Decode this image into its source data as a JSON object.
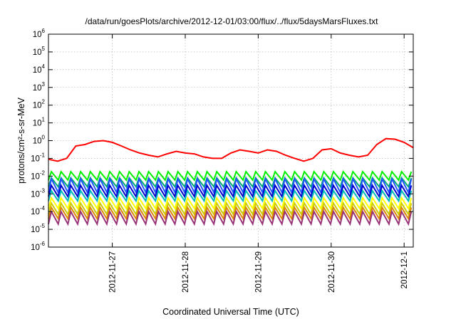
{
  "chart_data": {
    "type": "line",
    "title": "/data/run/goesPlots/archive/2012-12-01/03:00/flux/../flux/5daysMarsFluxes.txt",
    "xlabel": "Coordinated Universal Time (UTC)",
    "ylabel": "protons/cm²-s-sr-MeV",
    "yscale": "log",
    "ylim": [
      1e-06,
      1000000.0
    ],
    "xlim": [
      "2012-11-26T03:00",
      "2012-12-01T03:00"
    ],
    "grid": true,
    "y_ticks": [
      {
        "base": "10",
        "exp": "-6"
      },
      {
        "base": "10",
        "exp": "-5"
      },
      {
        "base": "10",
        "exp": "-4"
      },
      {
        "base": "10",
        "exp": "-3"
      },
      {
        "base": "10",
        "exp": "-2"
      },
      {
        "base": "10",
        "exp": "-1"
      },
      {
        "base": "10",
        "exp": "0"
      },
      {
        "base": "10",
        "exp": "1"
      },
      {
        "base": "10",
        "exp": "2"
      },
      {
        "base": "10",
        "exp": "3"
      },
      {
        "base": "10",
        "exp": "4"
      },
      {
        "base": "10",
        "exp": "5"
      },
      {
        "base": "10",
        "exp": "6"
      }
    ],
    "x_ticks": [
      "2012-11-27",
      "2012-11-28",
      "2012-11-29",
      "2012-11-30",
      "2012-12-1"
    ],
    "series": [
      {
        "color": "#ff0000",
        "x": [
          "2012-11-26T03:00",
          "2012-11-26T06:00",
          "2012-11-26T09:00",
          "2012-11-26T12:00",
          "2012-11-26T15:00",
          "2012-11-26T18:00",
          "2012-11-26T21:00",
          "2012-11-27T00:00",
          "2012-11-27T03:00",
          "2012-11-27T06:00",
          "2012-11-27T09:00",
          "2012-11-27T12:00",
          "2012-11-27T15:00",
          "2012-11-27T18:00",
          "2012-11-27T21:00",
          "2012-11-28T00:00",
          "2012-11-28T03:00",
          "2012-11-28T06:00",
          "2012-11-28T09:00",
          "2012-11-28T12:00",
          "2012-11-28T15:00",
          "2012-11-28T18:00",
          "2012-11-28T21:00",
          "2012-11-29T00:00",
          "2012-11-29T03:00",
          "2012-11-29T06:00",
          "2012-11-29T09:00",
          "2012-11-29T12:00",
          "2012-11-29T15:00",
          "2012-11-29T18:00",
          "2012-11-29T21:00",
          "2012-11-30T00:00",
          "2012-11-30T03:00",
          "2012-11-30T06:00",
          "2012-11-30T09:00",
          "2012-11-30T12:00",
          "2012-11-30T15:00",
          "2012-11-30T18:00",
          "2012-11-30T21:00",
          "2012-12-01T00:00",
          "2012-12-01T03:00"
        ],
        "values": [
          0.09,
          0.07,
          0.1,
          0.5,
          0.6,
          0.9,
          1.0,
          0.8,
          0.5,
          0.3,
          0.2,
          0.15,
          0.12,
          0.18,
          0.25,
          0.2,
          0.18,
          0.12,
          0.1,
          0.1,
          0.2,
          0.3,
          0.25,
          0.2,
          0.3,
          0.25,
          0.15,
          0.1,
          0.07,
          0.1,
          0.3,
          0.35,
          0.2,
          0.15,
          0.12,
          0.15,
          0.6,
          1.3,
          1.2,
          0.8,
          0.4
        ]
      },
      {
        "color": "#00ee00",
        "x_start": "2012-11-26T03:00",
        "x_end": "2012-12-01T03:00",
        "pattern": "sawtooth",
        "period_hours": 3.2,
        "low": 0.006,
        "high": 0.018
      },
      {
        "color": "#00aa77",
        "x_start": "2012-11-26T03:00",
        "x_end": "2012-12-01T03:00",
        "pattern": "sawtooth",
        "period_hours": 3.2,
        "low": 0.0025,
        "high": 0.008
      },
      {
        "color": "#2255ff",
        "x_start": "2012-11-26T03:00",
        "x_end": "2012-12-01T03:00",
        "pattern": "sawtooth",
        "period_hours": 3.2,
        "low": 0.0012,
        "high": 0.007
      },
      {
        "color": "#0000cc",
        "x_start": "2012-11-26T03:00",
        "x_end": "2012-12-01T03:00",
        "pattern": "sawtooth",
        "period_hours": 3.2,
        "low": 0.0007,
        "high": 0.003
      },
      {
        "color": "#00bbbb",
        "x_start": "2012-11-26T03:00",
        "x_end": "2012-12-01T03:00",
        "pattern": "sawtooth",
        "period_hours": 3.2,
        "low": 0.0004,
        "high": 0.0015
      },
      {
        "color": "#ffff00",
        "x_start": "2012-11-26T03:00",
        "x_end": "2012-12-01T03:00",
        "pattern": "sawtooth",
        "period_hours": 3.2,
        "low": 0.00015,
        "high": 0.0006
      },
      {
        "color": "#cccc00",
        "x_start": "2012-11-26T03:00",
        "x_end": "2012-12-01T03:00",
        "pattern": "sawtooth",
        "period_hours": 3.2,
        "low": 7e-05,
        "high": 0.0003
      },
      {
        "color": "#dd8800",
        "x_start": "2012-11-26T03:00",
        "x_end": "2012-12-01T03:00",
        "pattern": "sawtooth",
        "period_hours": 3.2,
        "low": 4e-05,
        "high": 0.00017
      },
      {
        "color": "#993377",
        "x_start": "2012-11-26T03:00",
        "x_end": "2012-12-01T03:00",
        "pattern": "sawtooth",
        "period_hours": 3.2,
        "low": 2e-05,
        "high": 0.0001
      }
    ]
  }
}
